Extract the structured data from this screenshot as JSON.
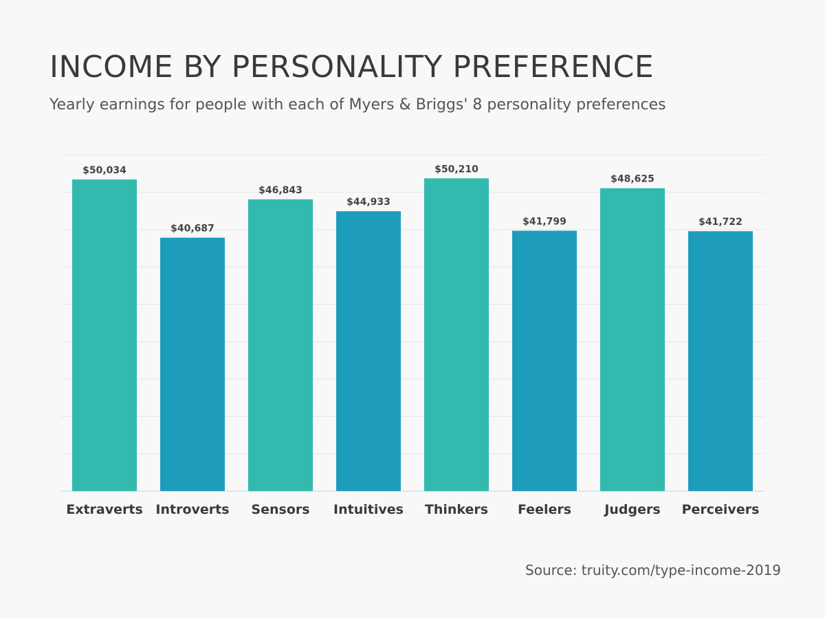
{
  "title": "INCOME BY PERSONALITY PREFERENCE",
  "subtitle": "Yearly earnings for people with each of Myers & Briggs' 8 personality preferences",
  "source": "Source: truity.com/type-income-2019",
  "chart_data": {
    "type": "bar",
    "title": "INCOME BY PERSONALITY PREFERENCE",
    "subtitle": "Yearly earnings for people with each of Myers & Briggs' 8 personality preferences",
    "categories": [
      "Extraverts",
      "Introverts",
      "Sensors",
      "Intuitives",
      "Thinkers",
      "Feelers",
      "Judgers",
      "Perceivers"
    ],
    "values": [
      50034,
      40687,
      46843,
      44933,
      50210,
      41799,
      48625,
      41722
    ],
    "data_labels": [
      "$50,034",
      "$40,687",
      "$46,843",
      "$44,933",
      "$50,210",
      "$41,799",
      "$48,625",
      "$41,722"
    ],
    "colors": [
      "#31baad",
      "#1e9dbb",
      "#31baad",
      "#1e9dbb",
      "#31baad",
      "#1e9dbb",
      "#31baad",
      "#1e9dbb"
    ],
    "ylim": [
      0,
      54000
    ],
    "grid": true,
    "xlabel": "",
    "ylabel": ""
  }
}
